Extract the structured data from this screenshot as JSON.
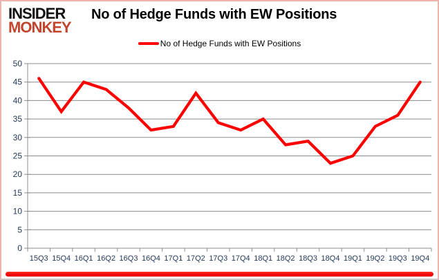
{
  "brand": {
    "line1": "INSIDER",
    "line2": "MONKEY"
  },
  "title": "No of Hedge Funds with EW Positions",
  "legend": {
    "label": "No of Hedge Funds with EW Positions"
  },
  "chart_data": {
    "type": "line",
    "title": "No of Hedge Funds with EW Positions",
    "categories": [
      "15Q3",
      "15Q4",
      "16Q1",
      "16Q2",
      "16Q3",
      "16Q4",
      "17Q1",
      "17Q2",
      "17Q3",
      "17Q4",
      "18Q1",
      "18Q2",
      "18Q3",
      "18Q4",
      "19Q1",
      "19Q2",
      "19Q3",
      "19Q4"
    ],
    "series": [
      {
        "name": "No of Hedge Funds with EW Positions",
        "values": [
          46,
          37,
          45,
          43,
          38,
          32,
          33,
          42,
          34,
          32,
          35,
          28,
          29,
          23,
          25,
          33,
          36,
          45
        ],
        "color": "#ff0000"
      }
    ],
    "ylim": [
      0,
      50
    ],
    "ytick_step": 5,
    "grid": true,
    "legend_position": "top"
  },
  "colors": {
    "accent": "#ff0000",
    "logo_red": "#c2452d",
    "axis_text": "#1f3655",
    "grid": "#8c8c8c",
    "axis_line": "#8c8c8c"
  }
}
